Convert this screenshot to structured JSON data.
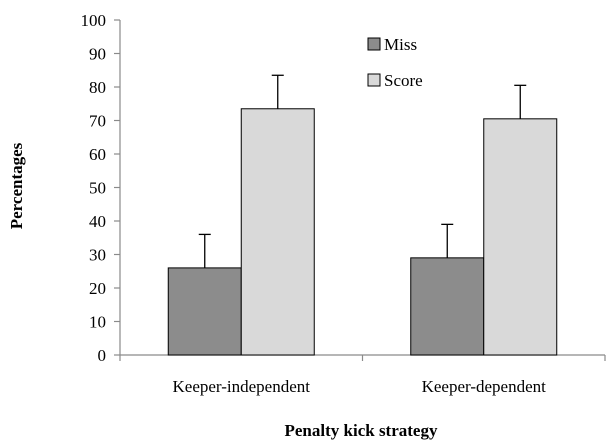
{
  "chart_data": {
    "type": "bar",
    "categories": [
      "Keeper-independent",
      "Keeper-dependent"
    ],
    "series": [
      {
        "name": "Miss",
        "values": [
          26,
          29
        ],
        "errors": [
          10,
          10
        ],
        "color": "#8c8c8c"
      },
      {
        "name": "Score",
        "values": [
          73.5,
          70.5
        ],
        "errors": [
          10,
          10
        ],
        "color": "#d9d9d9"
      }
    ],
    "xlabel": "Penalty kick strategy",
    "ylabel": "Percentages",
    "ylim": [
      0,
      100
    ],
    "yticks": [
      "0",
      "10",
      "20",
      "30",
      "40",
      "50",
      "60",
      "70",
      "80",
      "90",
      "100"
    ],
    "grid": false,
    "legend_position": "top-right"
  }
}
